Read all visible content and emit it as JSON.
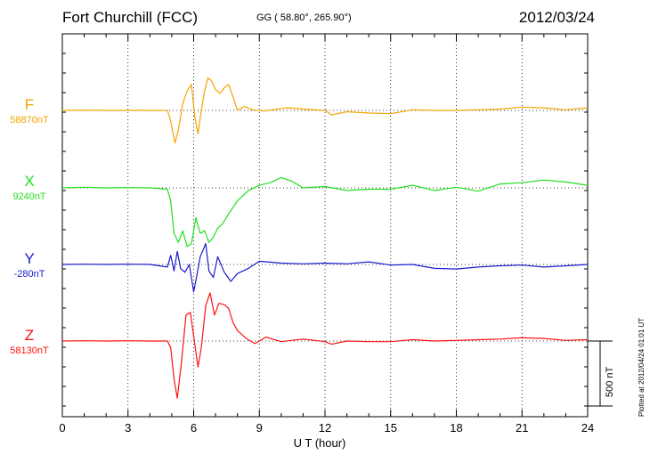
{
  "header": {
    "station": "Fort Churchill (FCC)",
    "coords": "GG ( 58.80°, 265.90°)",
    "date": "2012/03/24"
  },
  "plotted_note": "Plotted at 2012/04/24 01:01  UT",
  "scale_label": "500 nT",
  "chart_data": {
    "type": "line",
    "xlabel": "U T (hour)",
    "xlim": [
      0,
      24
    ],
    "xticks": [
      "0",
      "3",
      "6",
      "9",
      "12",
      "15",
      "18",
      "21",
      "24"
    ],
    "grid": true,
    "y_unit": "nT (deviation from baseline)",
    "series": [
      {
        "name": "F",
        "baseline_label": "58870nT",
        "color": "#f5a300",
        "x": [
          0,
          1,
          2,
          3,
          4,
          4.8,
          4.95,
          5.05,
          5.15,
          5.3,
          5.5,
          5.7,
          5.9,
          6.05,
          6.2,
          6.35,
          6.5,
          6.65,
          6.8,
          7.0,
          7.2,
          7.4,
          7.6,
          7.8,
          8.0,
          8.3,
          8.7,
          9.2,
          10,
          10.3,
          11,
          12,
          12.3,
          13,
          14,
          15,
          16,
          17,
          18,
          19,
          20,
          21,
          22,
          23,
          24
        ],
        "y": [
          0,
          2,
          0,
          1,
          0,
          0,
          -80,
          -170,
          -250,
          -150,
          50,
          150,
          200,
          -50,
          -180,
          0,
          150,
          250,
          230,
          160,
          130,
          175,
          200,
          100,
          0,
          30,
          5,
          -5,
          15,
          20,
          10,
          0,
          -35,
          -10,
          -20,
          -25,
          5,
          0,
          0,
          5,
          10,
          25,
          20,
          5,
          20
        ]
      },
      {
        "name": "X",
        "baseline_label": "9240nT",
        "color": "#22dd22",
        "x": [
          0,
          1,
          2,
          3,
          4,
          4.8,
          4.95,
          5.1,
          5.3,
          5.5,
          5.7,
          5.9,
          6.1,
          6.3,
          6.5,
          6.7,
          6.9,
          7.1,
          7.3,
          7.6,
          8.0,
          8.5,
          9,
          9.5,
          10,
          10.5,
          11,
          12,
          13,
          14,
          15,
          16,
          17,
          18,
          19,
          20,
          21,
          22,
          23,
          24
        ],
        "y": [
          0,
          5,
          0,
          2,
          0,
          -10,
          -100,
          -350,
          -420,
          -330,
          -450,
          -430,
          -230,
          -350,
          -330,
          -420,
          -380,
          -310,
          -280,
          -200,
          -100,
          -20,
          20,
          40,
          80,
          50,
          0,
          10,
          -20,
          -10,
          -10,
          20,
          -20,
          5,
          -25,
          30,
          40,
          60,
          45,
          20
        ]
      },
      {
        "name": "Y",
        "baseline_label": "-280nT",
        "color": "#1a1acc",
        "x": [
          0,
          1,
          2,
          3,
          4,
          4.8,
          4.95,
          5.1,
          5.25,
          5.4,
          5.6,
          5.8,
          6.0,
          6.15,
          6.3,
          6.45,
          6.55,
          6.7,
          6.9,
          7.1,
          7.4,
          7.7,
          8.0,
          8.5,
          9,
          10,
          11,
          12,
          13,
          14,
          15,
          16,
          17,
          18,
          19,
          20,
          21,
          22,
          23,
          24
        ],
        "y": [
          0,
          2,
          0,
          2,
          0,
          -20,
          70,
          -50,
          100,
          -30,
          -60,
          0,
          -210,
          -80,
          60,
          120,
          160,
          -50,
          -100,
          60,
          -60,
          -130,
          -70,
          -30,
          25,
          10,
          5,
          10,
          5,
          20,
          -5,
          0,
          -30,
          -35,
          -20,
          -10,
          -5,
          -20,
          -10,
          0
        ]
      },
      {
        "name": "Z",
        "baseline_label": "58130nT",
        "color": "#ff1111",
        "x": [
          0,
          1,
          2,
          3,
          4,
          4.8,
          4.95,
          5.1,
          5.25,
          5.45,
          5.65,
          5.85,
          6.05,
          6.2,
          6.35,
          6.55,
          6.75,
          6.95,
          7.15,
          7.4,
          7.6,
          7.8,
          8.0,
          8.4,
          8.8,
          9.3,
          10,
          11,
          12,
          12.3,
          13,
          14,
          15,
          16,
          17,
          18,
          19,
          20,
          21,
          22,
          23,
          24
        ],
        "y": [
          0,
          2,
          0,
          2,
          0,
          0,
          -50,
          -290,
          -440,
          -150,
          200,
          220,
          -20,
          -200,
          -50,
          270,
          370,
          200,
          290,
          280,
          250,
          140,
          80,
          20,
          -20,
          30,
          -5,
          15,
          -5,
          -25,
          0,
          -5,
          -5,
          10,
          0,
          5,
          10,
          15,
          25,
          20,
          5,
          10
        ]
      }
    ]
  }
}
